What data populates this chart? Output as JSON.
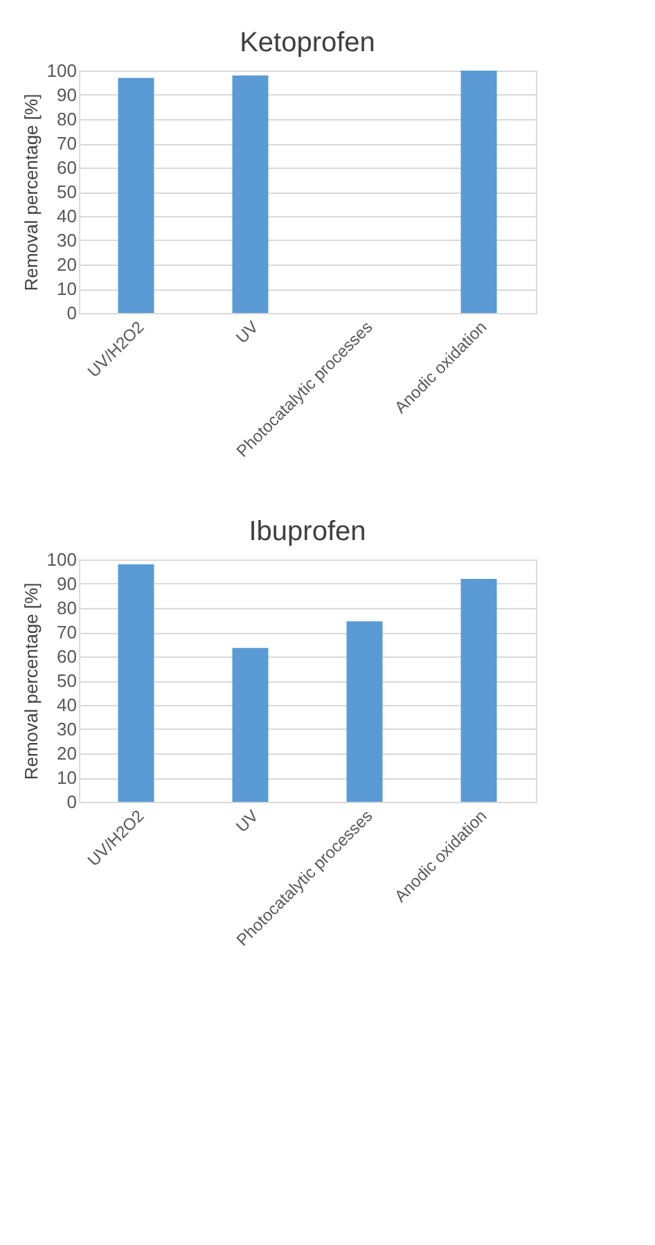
{
  "chart_data": [
    {
      "type": "bar",
      "title": "Ketoprofen",
      "ylabel": "Removal percentage [%]",
      "categories": [
        "UV/H2O2",
        "UV",
        "Photocatalytic processes",
        "Anodic oxidation"
      ],
      "values": [
        97,
        98,
        null,
        100
      ],
      "color": "#5b9bd5",
      "ylim": [
        0,
        100
      ],
      "yticks": [
        0,
        10,
        20,
        30,
        40,
        50,
        60,
        70,
        80,
        90,
        100
      ],
      "grid": "y"
    },
    {
      "type": "bar",
      "title": "Ibuprofen",
      "ylabel": "Removal percentage [%]",
      "categories": [
        "UV/H2O2",
        "UV",
        "Photocatalytic processes",
        "Anodic oxidation"
      ],
      "values": [
        98,
        63.5,
        74.5,
        92
      ],
      "color": "#5b9bd5",
      "ylim": [
        0,
        100
      ],
      "yticks": [
        0,
        10,
        20,
        30,
        40,
        50,
        60,
        70,
        80,
        90,
        100
      ],
      "grid": "y"
    }
  ]
}
